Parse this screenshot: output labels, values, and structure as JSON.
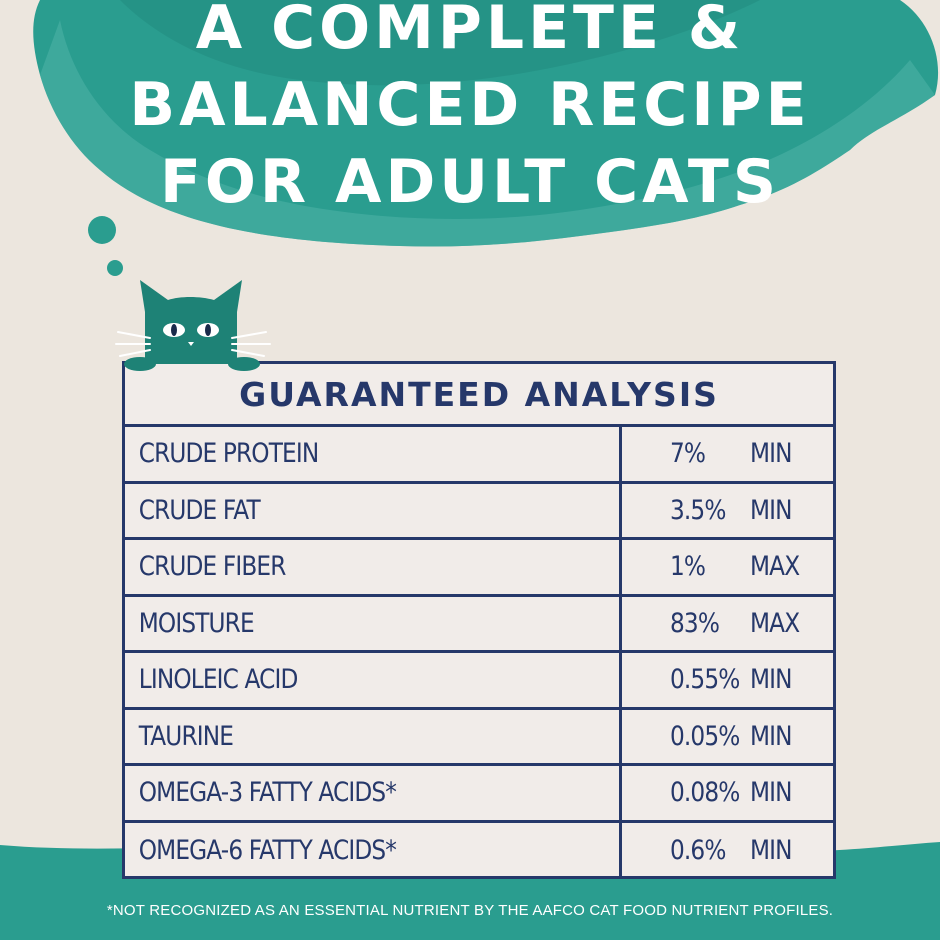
{
  "headline": {
    "line1": "A COMPLETE &",
    "line2": "BALANCED RECIPE",
    "line3": "FOR ADULT CATS"
  },
  "table": {
    "title": "GUARANTEED ANALYSIS",
    "rows": [
      {
        "name": "CRUDE PROTEIN",
        "value": "7%",
        "unit": "MIN"
      },
      {
        "name": "CRUDE FAT",
        "value": "3.5%",
        "unit": "MIN"
      },
      {
        "name": "CRUDE FIBER",
        "value": "1%",
        "unit": "MAX"
      },
      {
        "name": "MOISTURE",
        "value": "83%",
        "unit": "MAX"
      },
      {
        "name": "LINOLEIC ACID",
        "value": "0.55%",
        "unit": "MIN"
      },
      {
        "name": "TAURINE",
        "value": "0.05%",
        "unit": "MIN"
      },
      {
        "name": "OMEGA-3 FATTY ACIDS*",
        "value": "0.08%",
        "unit": "MIN"
      },
      {
        "name": "OMEGA-6 FATTY ACIDS*",
        "value": "0.6%",
        "unit": "MIN"
      }
    ]
  },
  "footnote": "*NOT RECOGNIZED AS AN ESSENTIAL NUTRIENT BY THE AAFCO CAT FOOD NUTRIENT PROFILES.",
  "colors": {
    "teal": "#2a9d8f",
    "teal_dark": "#1f7f73",
    "navy": "#26386a",
    "paper": "#ece6de",
    "table_bg": "#f1ece9"
  }
}
